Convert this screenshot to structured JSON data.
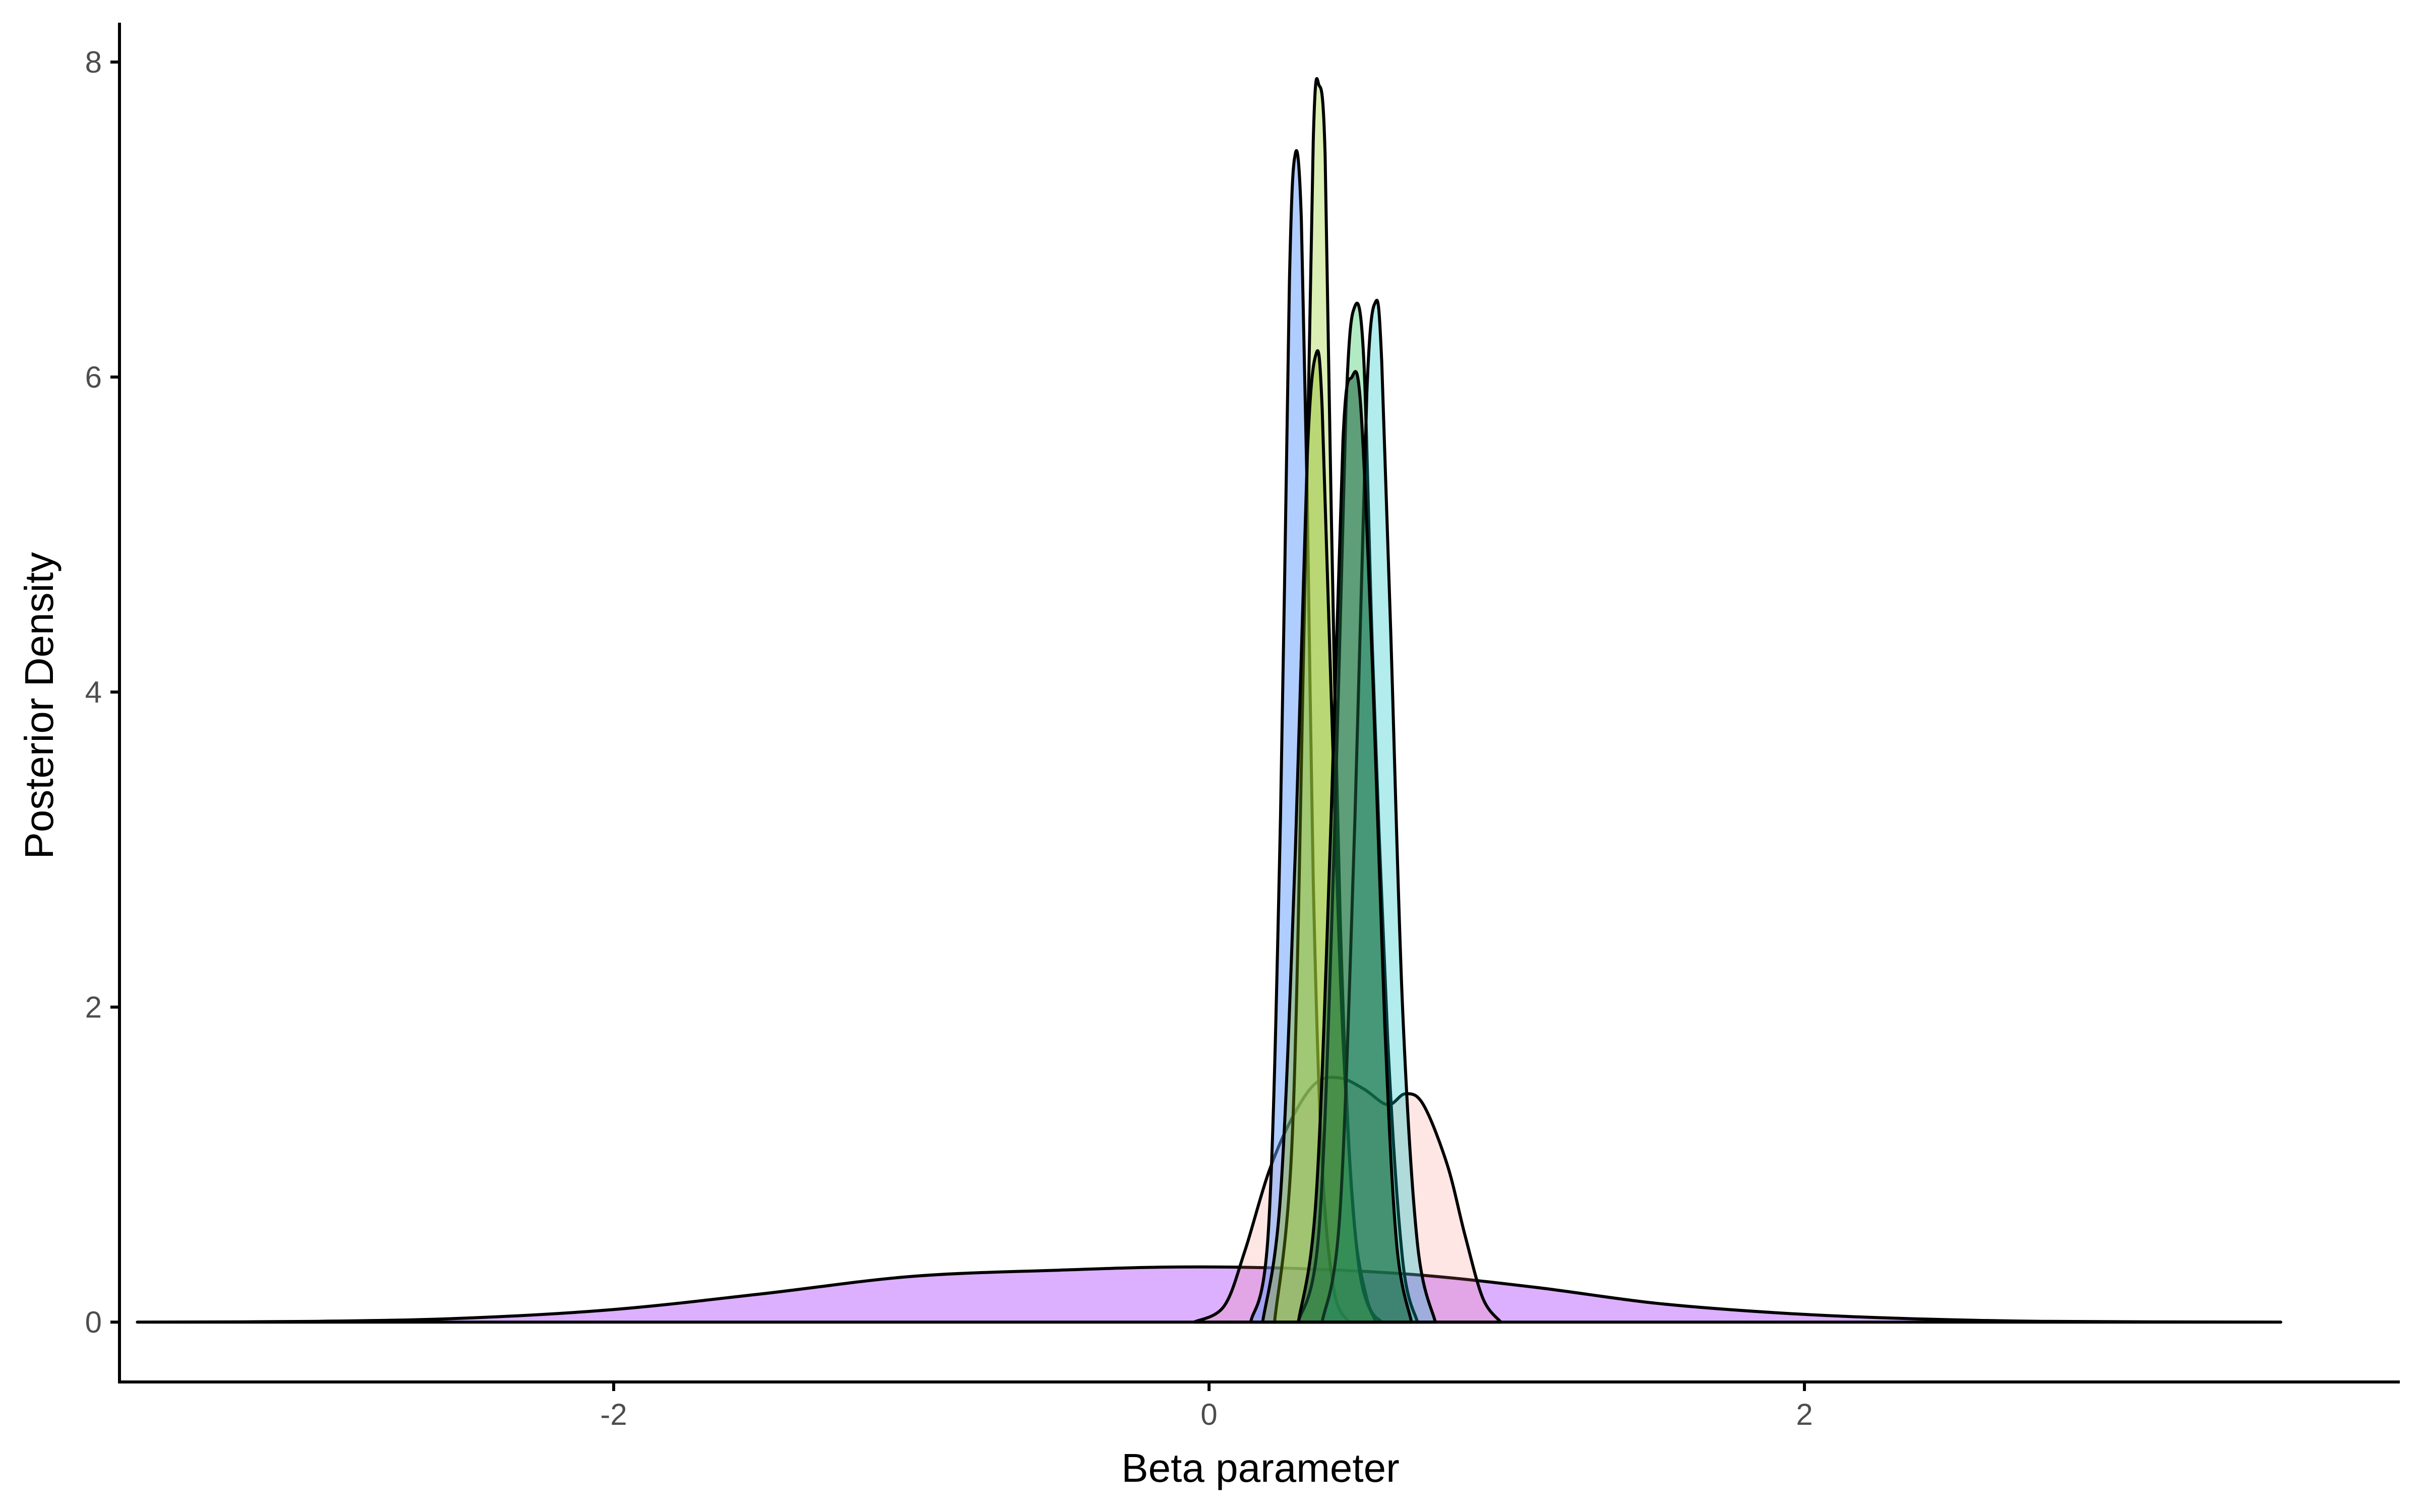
{
  "chart_data": {
    "type": "area",
    "title": "",
    "xlabel": "Beta parameter",
    "ylabel": "Posterior Density",
    "xlim": [
      -3.66,
      4.0
    ],
    "ylim": [
      -0.38,
      8.25
    ],
    "x_ticks": [
      -2,
      0,
      2
    ],
    "x_tick_labels": [
      "-2",
      "0",
      "2"
    ],
    "y_ticks": [
      0,
      2,
      4,
      6,
      8
    ],
    "y_tick_labels": [
      "0",
      "2",
      "4",
      "6",
      "8"
    ],
    "grid": false,
    "legend": "none",
    "series": [
      {
        "color": "#c77cff",
        "opacity": 0.6,
        "x": [
          -3.6,
          -3.0,
          -2.5,
          -2.0,
          -1.5,
          -1.0,
          -0.5,
          -0.1,
          0.3,
          0.7,
          1.1,
          1.5,
          1.9,
          2.3,
          2.8,
          3.6
        ],
        "y": [
          0,
          0.005,
          0.025,
          0.08,
          0.18,
          0.29,
          0.33,
          0.35,
          0.34,
          0.3,
          0.22,
          0.12,
          0.06,
          0.025,
          0.005,
          0
        ]
      },
      {
        "color": "#f8766d",
        "opacity": 0.18,
        "x": [
          -0.05,
          0.05,
          0.12,
          0.2,
          0.28,
          0.36,
          0.44,
          0.52,
          0.6,
          0.66,
          0.72,
          0.8,
          0.86,
          0.92,
          0.98
        ],
        "y": [
          0,
          0.1,
          0.45,
          0.95,
          1.3,
          1.52,
          1.55,
          1.48,
          1.38,
          1.45,
          1.38,
          1.0,
          0.55,
          0.15,
          0
        ]
      },
      {
        "color": "#619cff",
        "opacity": 0.5,
        "x": [
          0.14,
          0.2,
          0.24,
          0.27,
          0.29,
          0.31,
          0.33,
          0.35,
          0.38,
          0.42,
          0.47
        ],
        "y": [
          0,
          0.6,
          3.2,
          6.6,
          7.42,
          7.0,
          5.2,
          2.8,
          1.0,
          0.2,
          0
        ]
      },
      {
        "color": "#b7e06a",
        "opacity": 0.5,
        "x": [
          0.22,
          0.28,
          0.32,
          0.35,
          0.37,
          0.39,
          0.41,
          0.44,
          0.48,
          0.53,
          0.58
        ],
        "y": [
          0,
          1.2,
          4.5,
          7.5,
          7.85,
          7.4,
          5.2,
          2.6,
          0.8,
          0.15,
          0
        ]
      },
      {
        "color": "#7cae00",
        "opacity": 0.35,
        "x": [
          0.18,
          0.24,
          0.29,
          0.33,
          0.36,
          0.38,
          0.41,
          0.45,
          0.5,
          0.56
        ],
        "y": [
          0,
          0.8,
          3.0,
          5.5,
          6.15,
          5.8,
          4.0,
          1.8,
          0.4,
          0
        ]
      },
      {
        "color": "#00ba38",
        "opacity": 0.3,
        "x": [
          0.3,
          0.37,
          0.42,
          0.46,
          0.49,
          0.52,
          0.55,
          0.6,
          0.65,
          0.7
        ],
        "y": [
          0,
          0.6,
          3.0,
          5.8,
          6.45,
          6.1,
          4.2,
          1.8,
          0.4,
          0
        ]
      },
      {
        "color": "#00bfc4",
        "opacity": 0.3,
        "x": [
          0.38,
          0.44,
          0.49,
          0.53,
          0.56,
          0.58,
          0.61,
          0.65,
          0.7,
          0.76
        ],
        "y": [
          0,
          0.7,
          3.2,
          5.9,
          6.48,
          6.1,
          4.4,
          2.0,
          0.5,
          0
        ]
      },
      {
        "color": "#1a5e3a",
        "opacity": 0.55,
        "x": [
          0.3,
          0.36,
          0.41,
          0.45,
          0.48,
          0.51,
          0.55,
          0.59,
          0.63,
          0.68
        ],
        "y": [
          0,
          0.8,
          3.2,
          5.6,
          6.0,
          5.8,
          4.1,
          1.9,
          0.5,
          0
        ]
      }
    ]
  }
}
